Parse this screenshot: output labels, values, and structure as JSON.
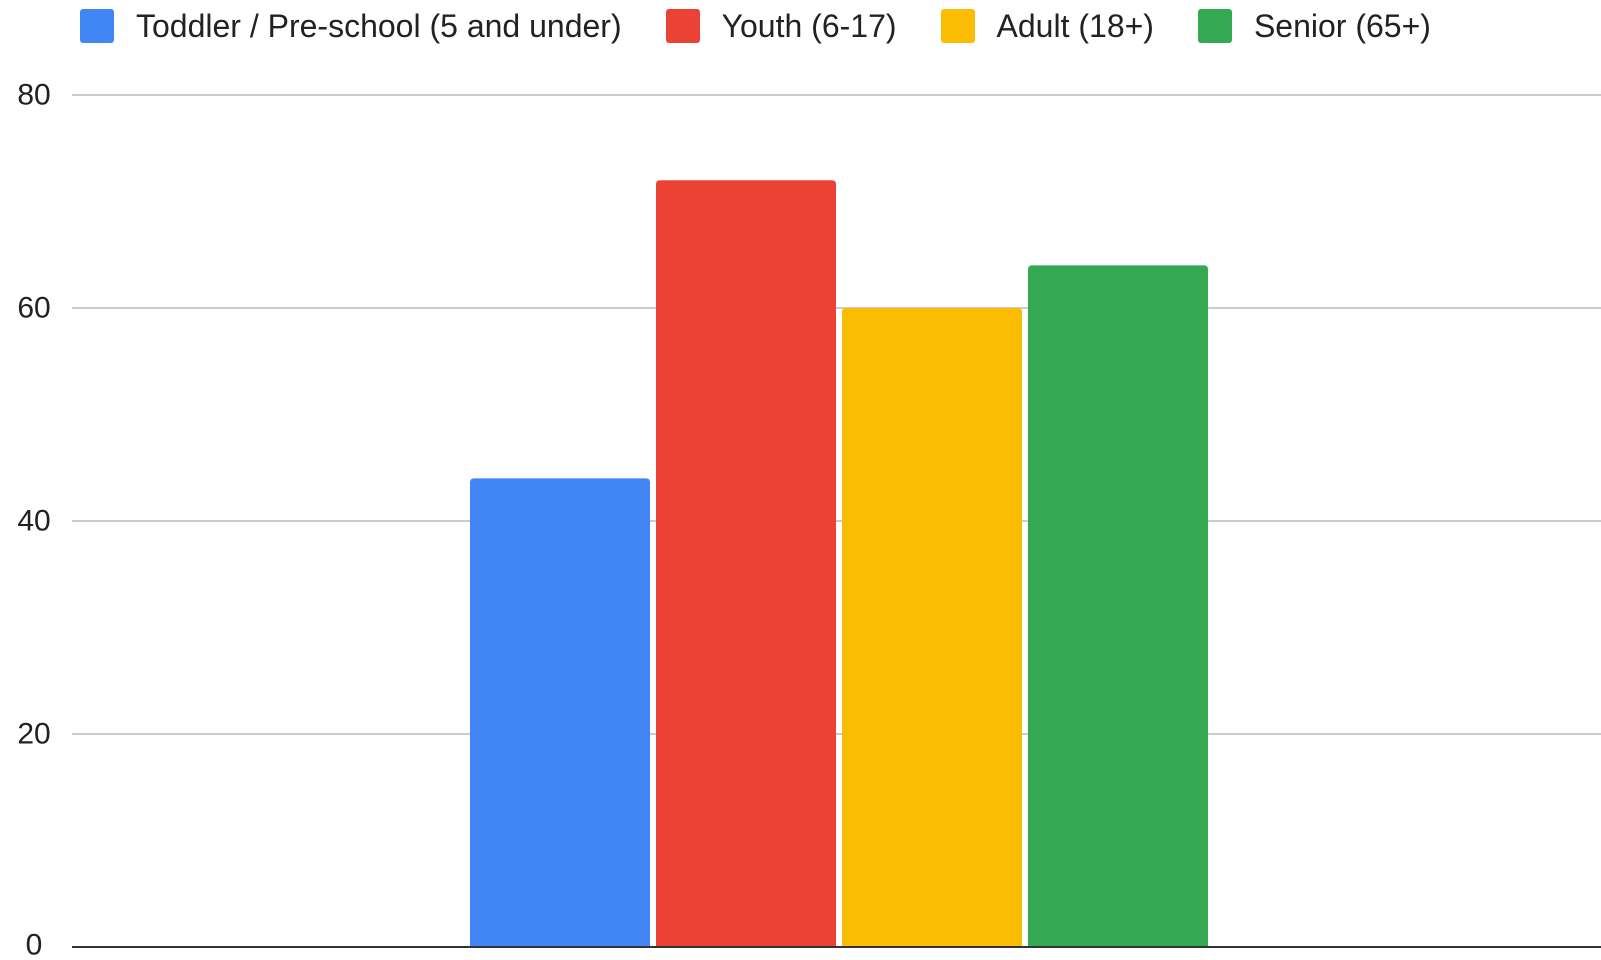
{
  "chart_data": {
    "type": "bar",
    "categories": [
      ""
    ],
    "series": [
      {
        "name": "Toddler / Pre-school (5 and under)",
        "values": [
          44
        ],
        "color": "#4285F4"
      },
      {
        "name": "Youth (6-17)",
        "values": [
          72
        ],
        "color": "#EA4335"
      },
      {
        "name": "Adult (18+)",
        "values": [
          60
        ],
        "color": "#FBBC04"
      },
      {
        "name": "Senior (65+)",
        "values": [
          64
        ],
        "color": "#34A853"
      }
    ],
    "title": "",
    "xlabel": "",
    "ylabel": "",
    "ylim": [
      0,
      80
    ],
    "yticks": [
      "0",
      "20",
      "40",
      "60",
      "80"
    ],
    "grid": true,
    "legend_position": "top"
  }
}
